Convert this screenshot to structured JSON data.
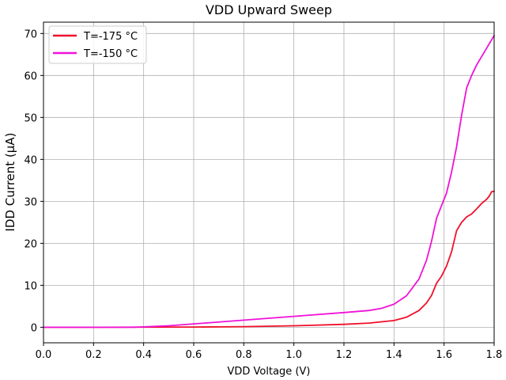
{
  "chart_data": {
    "type": "line",
    "title": "VDD Upward Sweep",
    "xlabel": "VDD Voltage (V)",
    "ylabel": "IDD Current (µA)",
    "xlim": [
      0.0,
      1.8
    ],
    "ylim": [
      -3.7,
      72.7
    ],
    "x_ticks": [
      0.0,
      0.2,
      0.4,
      0.6,
      0.8,
      1.0,
      1.2,
      1.4,
      1.6,
      1.8
    ],
    "x_tick_labels": [
      "0.0",
      "0.2",
      "0.4",
      "0.6",
      "0.8",
      "1.0",
      "1.2",
      "1.4",
      "1.6",
      "1.8"
    ],
    "y_ticks": [
      0,
      10,
      20,
      30,
      40,
      50,
      60,
      70
    ],
    "y_tick_labels": [
      "0",
      "10",
      "20",
      "30",
      "40",
      "50",
      "60",
      "70"
    ],
    "grid": true,
    "legend_position": "top-left",
    "series": [
      {
        "name": "T=-175 °C",
        "color": "#f0102a",
        "x": [
          0.0,
          0.2,
          0.4,
          0.6,
          0.8,
          1.0,
          1.2,
          1.3,
          1.4,
          1.45,
          1.5,
          1.53,
          1.55,
          1.57,
          1.59,
          1.61,
          1.63,
          1.65,
          1.67,
          1.69,
          1.71,
          1.73,
          1.75,
          1.77,
          1.78,
          1.79,
          1.8
        ],
        "y": [
          0.0,
          0.0,
          0.02,
          0.05,
          0.15,
          0.35,
          0.7,
          1.0,
          1.6,
          2.4,
          4.0,
          5.8,
          7.6,
          10.5,
          12.2,
          14.6,
          18.0,
          23.0,
          25.0,
          26.3,
          27.0,
          28.2,
          29.5,
          30.5,
          31.2,
          32.3,
          32.4
        ]
      },
      {
        "name": "T=-150 °C",
        "color": "#f012d8",
        "x": [
          0.0,
          0.2,
          0.36,
          0.4,
          0.5,
          0.6,
          0.8,
          1.0,
          1.2,
          1.3,
          1.35,
          1.4,
          1.45,
          1.5,
          1.53,
          1.55,
          1.57,
          1.59,
          1.61,
          1.63,
          1.65,
          1.67,
          1.69,
          1.71,
          1.73,
          1.76,
          1.78,
          1.8
        ],
        "y": [
          0.0,
          0.0,
          0.0,
          0.1,
          0.35,
          0.8,
          1.7,
          2.6,
          3.5,
          4.0,
          4.5,
          5.5,
          7.5,
          11.5,
          16.0,
          20.5,
          26.0,
          29.0,
          32.0,
          37.0,
          43.0,
          50.5,
          57.0,
          60.0,
          62.5,
          65.5,
          67.5,
          69.5
        ]
      }
    ]
  }
}
